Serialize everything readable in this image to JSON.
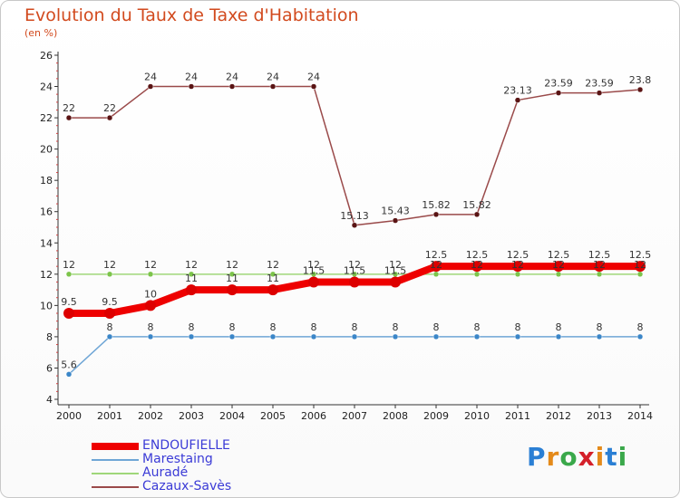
{
  "header": {
    "title": "Evolution du Taux de Taxe d'Habitation",
    "subtitle": "(en %)"
  },
  "logo": {
    "text": "Proxiti",
    "letters": [
      "P",
      "r",
      "o",
      "x",
      "i",
      "t",
      "i"
    ],
    "colors": [
      "#2a7fd4",
      "#e48a1a",
      "#3aa84a",
      "#d4202a",
      "#e48a1a",
      "#2a7fd4",
      "#3aa84a"
    ]
  },
  "chart_data": {
    "type": "line",
    "title": "Evolution du Taux de Taxe d'Habitation",
    "ylabel": "(en %)",
    "xlabel": "",
    "categories": [
      "2000",
      "2001",
      "2002",
      "2003",
      "2004",
      "2005",
      "2006",
      "2007",
      "2008",
      "2009",
      "2010",
      "2011",
      "2012",
      "2013",
      "2014"
    ],
    "ylim": [
      4,
      26
    ],
    "yticks": [
      4,
      6,
      8,
      10,
      12,
      14,
      16,
      18,
      20,
      22,
      24,
      26
    ],
    "grid": false,
    "legend_position": "bottom-left",
    "series": [
      {
        "name": "ENDOUFIELLE",
        "color": "#ee0000",
        "marker": "#dd0000",
        "width": 8,
        "values": [
          9.5,
          9.5,
          10,
          11,
          11,
          11,
          11.5,
          11.5,
          11.5,
          12.5,
          12.5,
          12.5,
          12.5,
          12.5,
          12.5
        ],
        "labels": [
          "9.5",
          "9.5",
          "10",
          "11",
          "11",
          "11",
          "11.5",
          "11.5",
          "11.5",
          "12.5",
          "12.5",
          "12.5",
          "12.5",
          "12.5",
          "12.5"
        ]
      },
      {
        "name": "Marestaing",
        "color": "#6fa6d6",
        "marker": "#3b86c8",
        "width": 1.5,
        "values": [
          5.6,
          8,
          8,
          8,
          8,
          8,
          8,
          8,
          8,
          8,
          8,
          8,
          8,
          8,
          8
        ],
        "labels": [
          "5.6",
          "8",
          "8",
          "8",
          "8",
          "8",
          "8",
          "8",
          "8",
          "8",
          "8",
          "8",
          "8",
          "8",
          "8"
        ]
      },
      {
        "name": "Auradé",
        "color": "#9fd77a",
        "marker": "#7cc44a",
        "width": 1.5,
        "values": [
          12,
          12,
          12,
          12,
          12,
          12,
          12,
          12,
          12,
          12,
          12,
          12,
          12,
          12,
          12
        ],
        "labels": [
          "12",
          "12",
          "12",
          "12",
          "12",
          "12",
          "12",
          "12",
          "12",
          "12",
          "12",
          "12",
          "12",
          "12",
          "12"
        ]
      },
      {
        "name": "Cazaux-Savès",
        "color": "#9a4a4a",
        "marker": "#5a1414",
        "width": 1.5,
        "values": [
          22,
          22,
          24,
          24,
          24,
          24,
          24,
          15.13,
          15.43,
          15.82,
          15.82,
          23.13,
          23.59,
          23.59,
          23.8
        ],
        "labels": [
          "22",
          "22",
          "24",
          "24",
          "24",
          "24",
          "24",
          "15.13",
          "15.43",
          "15.82",
          "15.82",
          "23.13",
          "23.59",
          "23.59",
          "23.8"
        ]
      }
    ]
  }
}
